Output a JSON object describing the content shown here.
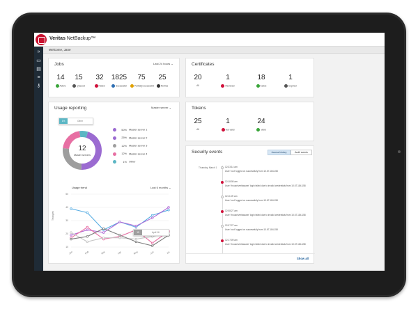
{
  "app": {
    "brand": "Veritas",
    "product": "NetBackup™"
  },
  "welcome_text": "Welcome, Jane",
  "jobs": {
    "title": "Jobs",
    "range": "Last 24 hours",
    "stats": [
      {
        "value": "14",
        "label": "Active",
        "color": "#3aa53a"
      },
      {
        "value": "15",
        "label": "Queued",
        "color": "#555555"
      },
      {
        "value": "32",
        "label": "Failed",
        "color": "#d0103a"
      },
      {
        "value": "1825",
        "label": "Successful",
        "color": "#2f6fb3"
      },
      {
        "value": "75",
        "label": "Partially successful",
        "color": "#e0a100"
      },
      {
        "value": "25",
        "label": "Retries",
        "color": "#333333"
      }
    ]
  },
  "certificates": {
    "title": "Certificates",
    "stats": [
      {
        "value": "20",
        "label": "All",
        "color": ""
      },
      {
        "value": "1",
        "label": "Revoked",
        "color": "#d0103a"
      },
      {
        "value": "18",
        "label": "Active",
        "color": "#3aa53a"
      },
      {
        "value": "1",
        "label": "Expired",
        "color": "#555555"
      }
    ]
  },
  "tokens": {
    "title": "Tokens",
    "stats": [
      {
        "value": "25",
        "label": "All",
        "color": ""
      },
      {
        "value": "1",
        "label": "Not valid",
        "color": "#d0103a"
      },
      {
        "value": "24",
        "label": "Valid",
        "color": "#3aa53a"
      }
    ]
  },
  "usage": {
    "title": "Usage reporting",
    "server_select": "Master server",
    "donut_count": "12",
    "donut_label": "Master servers",
    "tooltip": {
      "pct": "1%",
      "label": "Other"
    },
    "legend": [
      {
        "pct": "50%",
        "label": "Master server 1",
        "color": "#9b6bd1"
      },
      {
        "pct": "25%",
        "label": "Master server 2",
        "color": "#9b6bd1"
      },
      {
        "pct": "12%",
        "label": "Master server 3",
        "color": "#9e9e9e"
      },
      {
        "pct": "12%",
        "label": "Master server 4",
        "color": "#e76fa3"
      },
      {
        "pct": "1%",
        "label": "Other",
        "color": "#5bb6c4"
      }
    ],
    "trend_title": "Usage trend",
    "trend_range": "Last 6 months",
    "trend_tooltip": {
      "value": "15",
      "label": "April 16"
    }
  },
  "security": {
    "title": "Security events",
    "tabs": [
      "Access history",
      "Audit events"
    ],
    "day_label": "Thursday, March 1",
    "events": [
      {
        "time": "12:33:14 am",
        "desc": "User 'root' logged on successfully from 10.67.184.158",
        "alert": false
      },
      {
        "time": "12:18:08 am",
        "desc": "User 'rhouse\\veritasuser' login failed due to invalid credentials from 10.67.184.158",
        "alert": true
      },
      {
        "time": "12:11:09 am",
        "desc": "User 'root' logged on successfully from 10.67.184.158",
        "alert": false
      },
      {
        "time": "12:08:27 am",
        "desc": "User 'rhouse\\veritasuser' login failed due to invalid credentials from 10.67.184.158",
        "alert": true
      },
      {
        "time": "12:07:27 am",
        "desc": "User 'root' logged on successfully from 10.67.184.158",
        "alert": false
      },
      {
        "time": "12:17:09 am",
        "desc": "User 'rhouse\\veritasuser' login failed due to invalid credentials from 10.67.184.158",
        "alert": true
      }
    ],
    "footer_link": "Show all"
  },
  "chart_data": {
    "type": "line",
    "title": "Usage trend",
    "xlabel": "",
    "ylabel": "Terabytes",
    "categories": [
      "Jan",
      "Feb",
      "Mar",
      "Apr",
      "May",
      "Jun",
      "Jul"
    ],
    "ylim": [
      10,
      50
    ],
    "yticks": [
      10,
      20,
      30,
      40,
      50
    ],
    "series": [
      {
        "values": [
          39,
          36,
          23,
          29,
          25,
          34,
          38
        ],
        "color": "#5aaee3"
      },
      {
        "values": [
          19,
          23,
          21,
          29,
          26,
          32,
          40
        ],
        "color": "#b06ad6"
      },
      {
        "values": [
          17,
          25,
          16,
          18,
          23,
          13,
          22
        ],
        "color": "#e76fa3"
      },
      {
        "values": [
          21,
          14,
          17,
          17,
          16,
          18,
          21
        ],
        "color": "#c6c6c6"
      },
      {
        "values": [
          16,
          18,
          24,
          19,
          14,
          11,
          19
        ],
        "color": "#7d7d7d"
      }
    ]
  }
}
